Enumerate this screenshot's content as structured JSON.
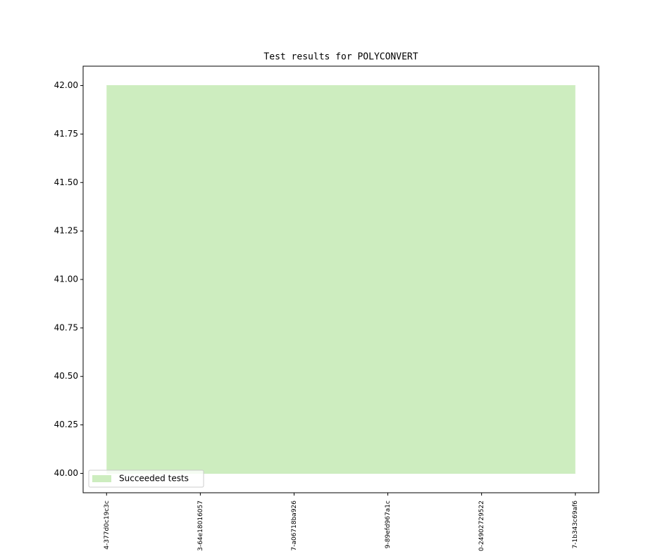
{
  "chart_data": {
    "type": "area",
    "title": "Test results for POLYCONVERT",
    "categories": [
      "4-377d0c19c3c",
      "3-64e18016057",
      "7-a06718ba926",
      "9-89efd967a1c",
      "0-24902729522",
      "7-1b343c69af6"
    ],
    "series": [
      {
        "name": "Succeeded tests",
        "color": "#cdedbf",
        "values": [
          42,
          42,
          42,
          42,
          42,
          42
        ],
        "lower": [
          40,
          40,
          40,
          40,
          40,
          40
        ]
      }
    ],
    "ylim": [
      39.9,
      42.1
    ],
    "yticks": [
      {
        "value": 40,
        "label": "40.00"
      },
      {
        "value": 40.25,
        "label": "40.25"
      },
      {
        "value": 40.5,
        "label": "40.50"
      },
      {
        "value": 40.75,
        "label": "40.75"
      },
      {
        "value": 41,
        "label": "41.00"
      },
      {
        "value": 41.25,
        "label": "41.25"
      },
      {
        "value": 41.5,
        "label": "41.50"
      },
      {
        "value": 41.75,
        "label": "41.75"
      },
      {
        "value": 42,
        "label": "42.00"
      }
    ],
    "grid": false,
    "legend": "lower left"
  }
}
